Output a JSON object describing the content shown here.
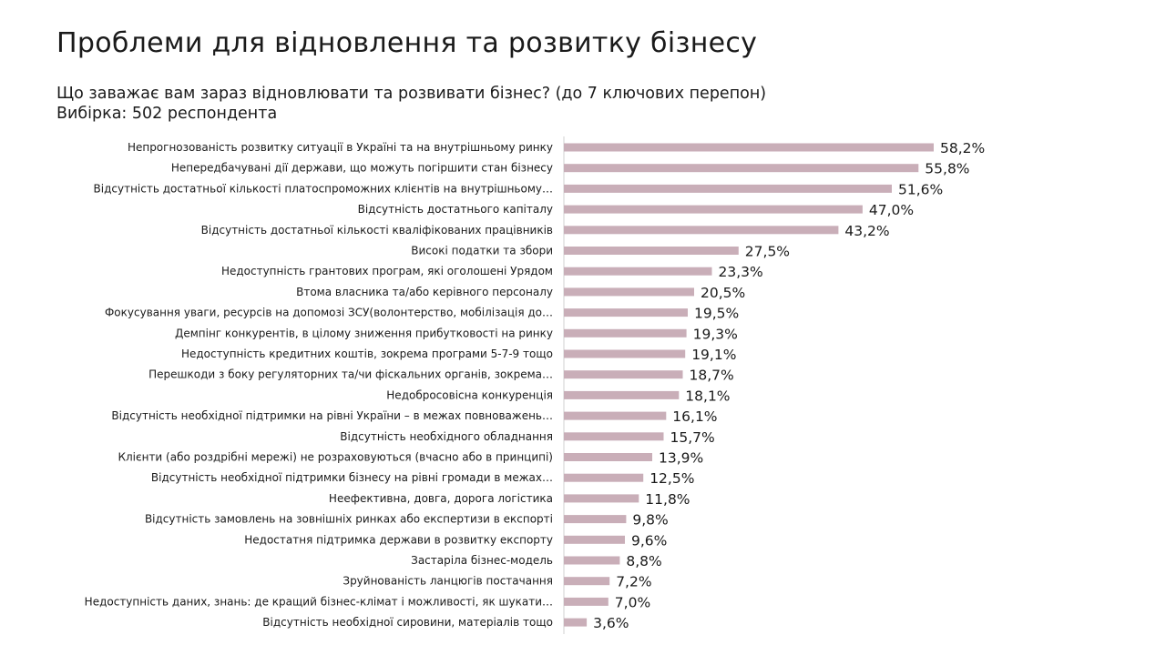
{
  "title": "Проблеми для відновлення та розвитку бізнесу",
  "subtitle": {
    "question": "Що заважає вам зараз відновлювати та розвивати бізнес? (до 7 ключових перепон)",
    "sample": "Вибірка: 502 респондента"
  },
  "colors": {
    "bar": "#c9aeb8",
    "axis": "#d0d0d0",
    "text": "#1a1a1a"
  },
  "chart_data": {
    "type": "bar",
    "orientation": "horizontal",
    "title": "Проблеми для відновлення та розвитку бізнесу",
    "xlabel": "",
    "ylabel": "",
    "unit": "%",
    "xlim": [
      0,
      60
    ],
    "grid": false,
    "legend": "none",
    "categories": [
      "Непрогнозованість розвитку ситуації в Україні та на внутрішньому ринку",
      "Непередбачувані дії держави, що можуть погіршити стан бізнесу",
      "Відсутність достатньої кількості платоспроможних клієнтів на внутрішньому…",
      "Відсутність достатнього капіталу",
      "Відсутність достатньої кількості кваліфікованих працівників",
      "Високі податки та збори",
      "Недоступність грантових програм, які оголошені Урядом",
      "Втома власника та/або керівного персоналу",
      "Фокусування уваги, ресурсів на допомозі ЗСУ(волонтерство, мобілізація до…",
      "Демпінг конкурентів, в цілому зниження прибутковості на ринку",
      "Недоступність кредитних коштів, зокрема програми 5-7-9 тощо",
      "Перешкоди з боку регуляторних та/чи фіскальних органів, зокрема…",
      "Недобросовісна конкуренція",
      "Відсутність необхідної підтримки на рівні України – в межах повноважень…",
      "Відсутність необхідного обладнання",
      "Клієнти (або роздрібні мережі) не розраховуються (вчасно або в принципі)",
      "Відсутність необхідної підтримки бізнесу на рівні громади в межах…",
      "Неефективна, довга, дорога логістика",
      "Відсутність замовлень на зовнішніх ринках або експертизи в експорті",
      "Недостатня підтримка держави в розвитку експорту",
      "Застаріла бізнес-модель",
      "Зруйнованість ланцюгів постачання",
      "Недоступність даних, знань: де кращий бізнес-клімат і можливості, як шукати…",
      "Відсутність необхідної сировини, матеріалів тощо"
    ],
    "values": [
      58.2,
      55.8,
      51.6,
      47.0,
      43.2,
      27.5,
      23.3,
      20.5,
      19.5,
      19.3,
      19.1,
      18.7,
      18.1,
      16.1,
      15.7,
      13.9,
      12.5,
      11.8,
      9.8,
      9.6,
      8.8,
      7.2,
      7.0,
      3.6
    ],
    "value_labels": [
      "58,2%",
      "55,8%",
      "51,6%",
      "47,0%",
      "43,2%",
      "27,5%",
      "23,3%",
      "20,5%",
      "19,5%",
      "19,3%",
      "19,1%",
      "18,7%",
      "18,1%",
      "16,1%",
      "15,7%",
      "13,9%",
      "12,5%",
      "11,8%",
      "9,8%",
      "9,6%",
      "8,8%",
      "7,2%",
      "7,0%",
      "3,6%"
    ]
  }
}
